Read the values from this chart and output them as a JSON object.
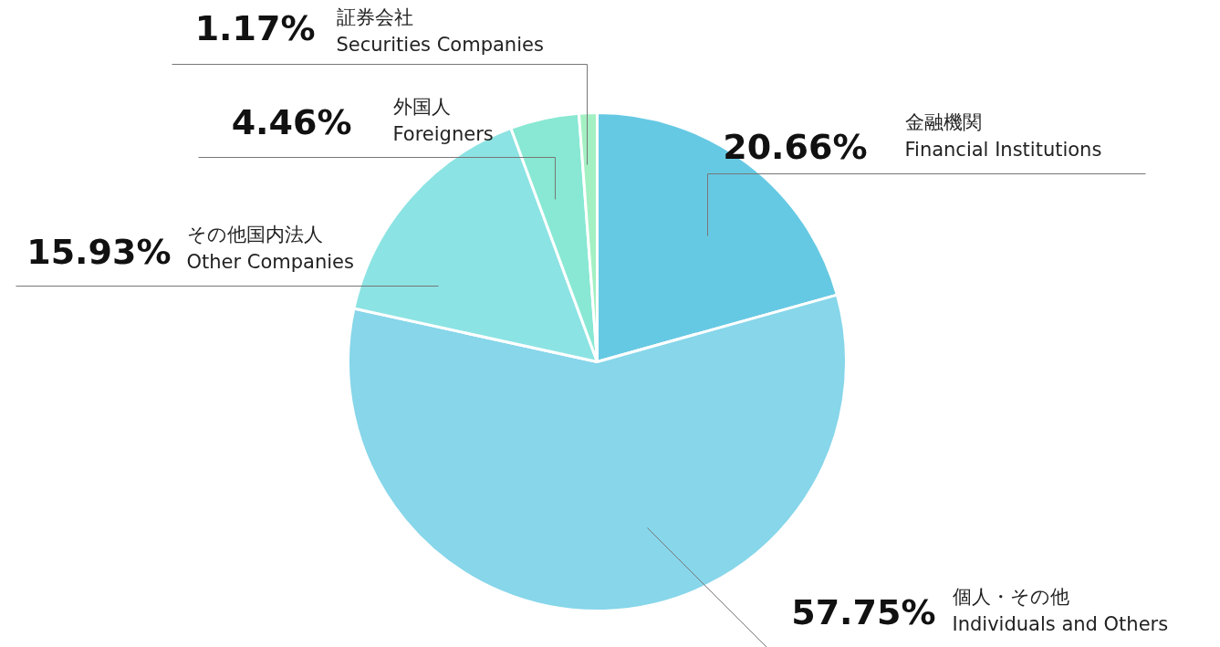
{
  "chart_data": {
    "type": "pie",
    "categories": [
      "金融機関\nFinancial Institutions",
      "個人・その他\nIndividuals and Others",
      "その他国内法人\nOther Companies",
      "外国人\nForeigners",
      "証券会社\nSecurities Companies"
    ],
    "values": [
      20.66,
      57.75,
      15.93,
      4.46,
      1.17
    ],
    "value_labels": [
      "20.66%",
      "57.75%",
      "15.93%",
      "4.46%",
      "1.17%"
    ],
    "colors": [
      "#66c9e3",
      "#87d6ea",
      "#8ce3e3",
      "#88e8d3",
      "#a3f0c3"
    ]
  }
}
